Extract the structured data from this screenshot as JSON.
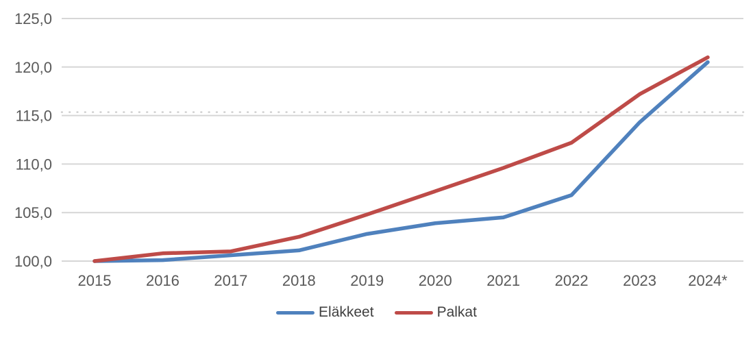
{
  "chart_data": {
    "type": "line",
    "title": "",
    "x_categories": [
      "2015",
      "2016",
      "2017",
      "2018",
      "2019",
      "2020",
      "2021",
      "2022",
      "2023",
      "2024*"
    ],
    "series": [
      {
        "name": "Eläkkeet",
        "color": "#4F81BD",
        "values": [
          100.0,
          100.1,
          100.6,
          101.1,
          102.8,
          103.9,
          104.5,
          106.8,
          114.3,
          120.5
        ]
      },
      {
        "name": "Palkat",
        "color": "#BE4B48",
        "values": [
          100.0,
          100.8,
          101.0,
          102.5,
          104.8,
          107.2,
          109.6,
          112.2,
          117.2,
          121.0
        ]
      }
    ],
    "ylim": [
      100,
      125
    ],
    "y_tick_step": 5,
    "y_tick_labels": [
      "100,0",
      "105,0",
      "110,0",
      "115,0",
      "120,0",
      "125,0"
    ],
    "grid": "horizontal",
    "extra_dotted_gridline_value": 115.35,
    "legend_position": "bottom-center"
  },
  "colors": {
    "grid": "#D6D6D6",
    "dotted_grid": "#CFCFCF",
    "axis_text": "#595959",
    "background": "#FFFFFF"
  }
}
